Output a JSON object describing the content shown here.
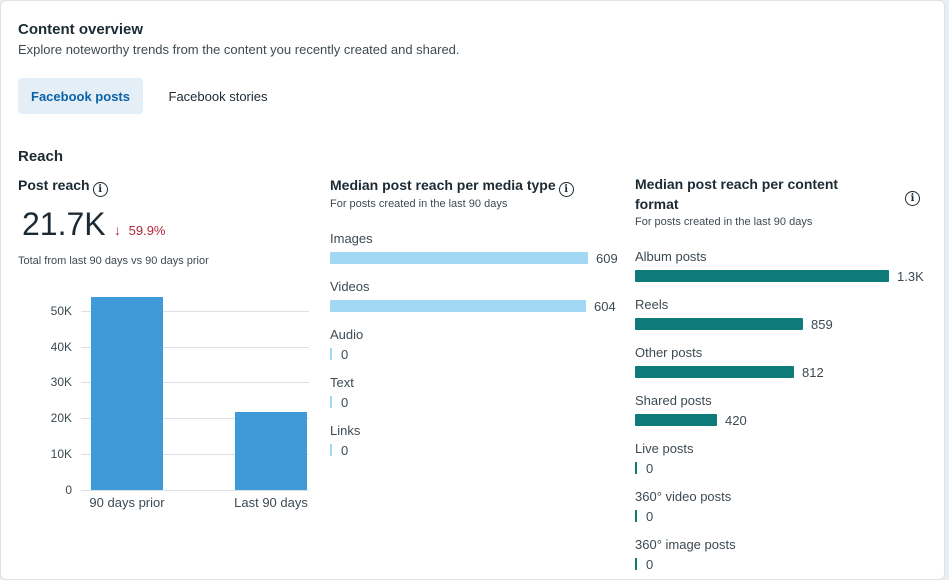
{
  "header": {
    "title": "Content overview",
    "subtitle": "Explore noteworthy trends from the content you recently created and shared."
  },
  "tabs": [
    {
      "label": "Facebook posts",
      "active": true
    },
    {
      "label": "Facebook stories",
      "active": false
    }
  ],
  "section_title": "Reach",
  "post_reach": {
    "label": "Post reach",
    "value": "21.7K",
    "change": "59.9%",
    "change_direction": "down",
    "caption": "Total from last 90 days vs 90 days prior",
    "chart_data": {
      "type": "bar",
      "categories": [
        "90 days prior",
        "Last 90 days"
      ],
      "values": [
        54000,
        21700
      ],
      "ylim": [
        0,
        50000
      ],
      "yticks": [
        "50K",
        "40K",
        "30K",
        "20K",
        "10K",
        "0"
      ],
      "grid": true,
      "color": "#3f9bd8"
    }
  },
  "media_type": {
    "title": "Median post reach per media type",
    "subtitle": "For posts created in the last 90 days",
    "color": "#a3d8f4",
    "items": [
      {
        "label": "Images",
        "value": 609,
        "display": "609"
      },
      {
        "label": "Videos",
        "value": 604,
        "display": "604"
      },
      {
        "label": "Audio",
        "value": 0,
        "display": "0"
      },
      {
        "label": "Text",
        "value": 0,
        "display": "0"
      },
      {
        "label": "Links",
        "value": 0,
        "display": "0"
      }
    ]
  },
  "content_format": {
    "title_line1": "Median post reach per content",
    "title_line2": "format",
    "subtitle": "For posts created in the last 90 days",
    "color": "#0f7b7b",
    "items": [
      {
        "label": "Album posts",
        "value": 1300,
        "display": "1.3K"
      },
      {
        "label": "Reels",
        "value": 859,
        "display": "859"
      },
      {
        "label": "Other posts",
        "value": 812,
        "display": "812"
      },
      {
        "label": "Shared posts",
        "value": 420,
        "display": "420"
      },
      {
        "label": "Live posts",
        "value": 0,
        "display": "0"
      },
      {
        "label": "360° video posts",
        "value": 0,
        "display": "0"
      },
      {
        "label": "360° image posts",
        "value": 0,
        "display": "0"
      }
    ]
  }
}
